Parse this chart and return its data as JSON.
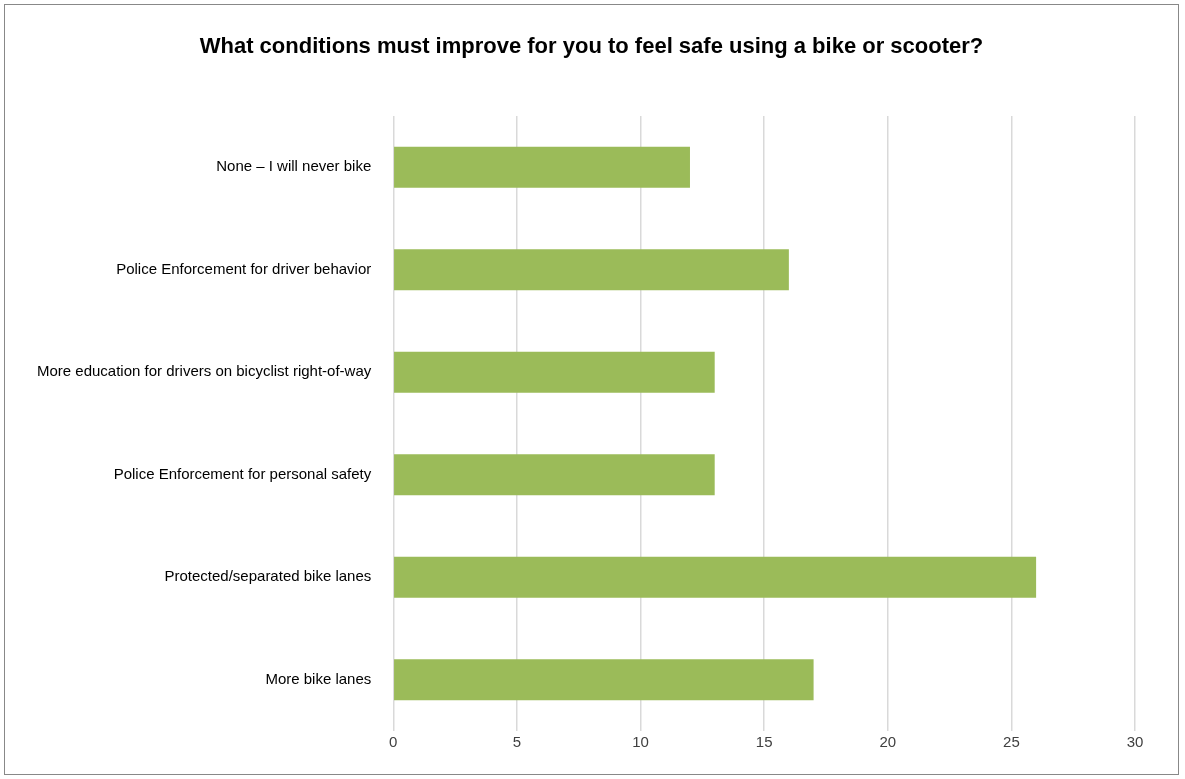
{
  "chart_data": {
    "type": "bar",
    "orientation": "horizontal",
    "title": "What conditions must improve for you to feel safe using a bike or scooter?",
    "categories": [
      "None – I will never bike",
      "Police Enforcement for driver behavior",
      "More education for drivers on bicyclist right-of-way",
      "Police Enforcement for personal safety",
      "Protected/separated bike lanes",
      "More bike lanes"
    ],
    "values": [
      12,
      16,
      13,
      13,
      26,
      17
    ],
    "color": "#9bbb59",
    "xlim": [
      0,
      30
    ],
    "xticks": [
      0,
      5,
      10,
      15,
      20,
      25,
      30
    ],
    "grid": "x",
    "legend": false
  }
}
